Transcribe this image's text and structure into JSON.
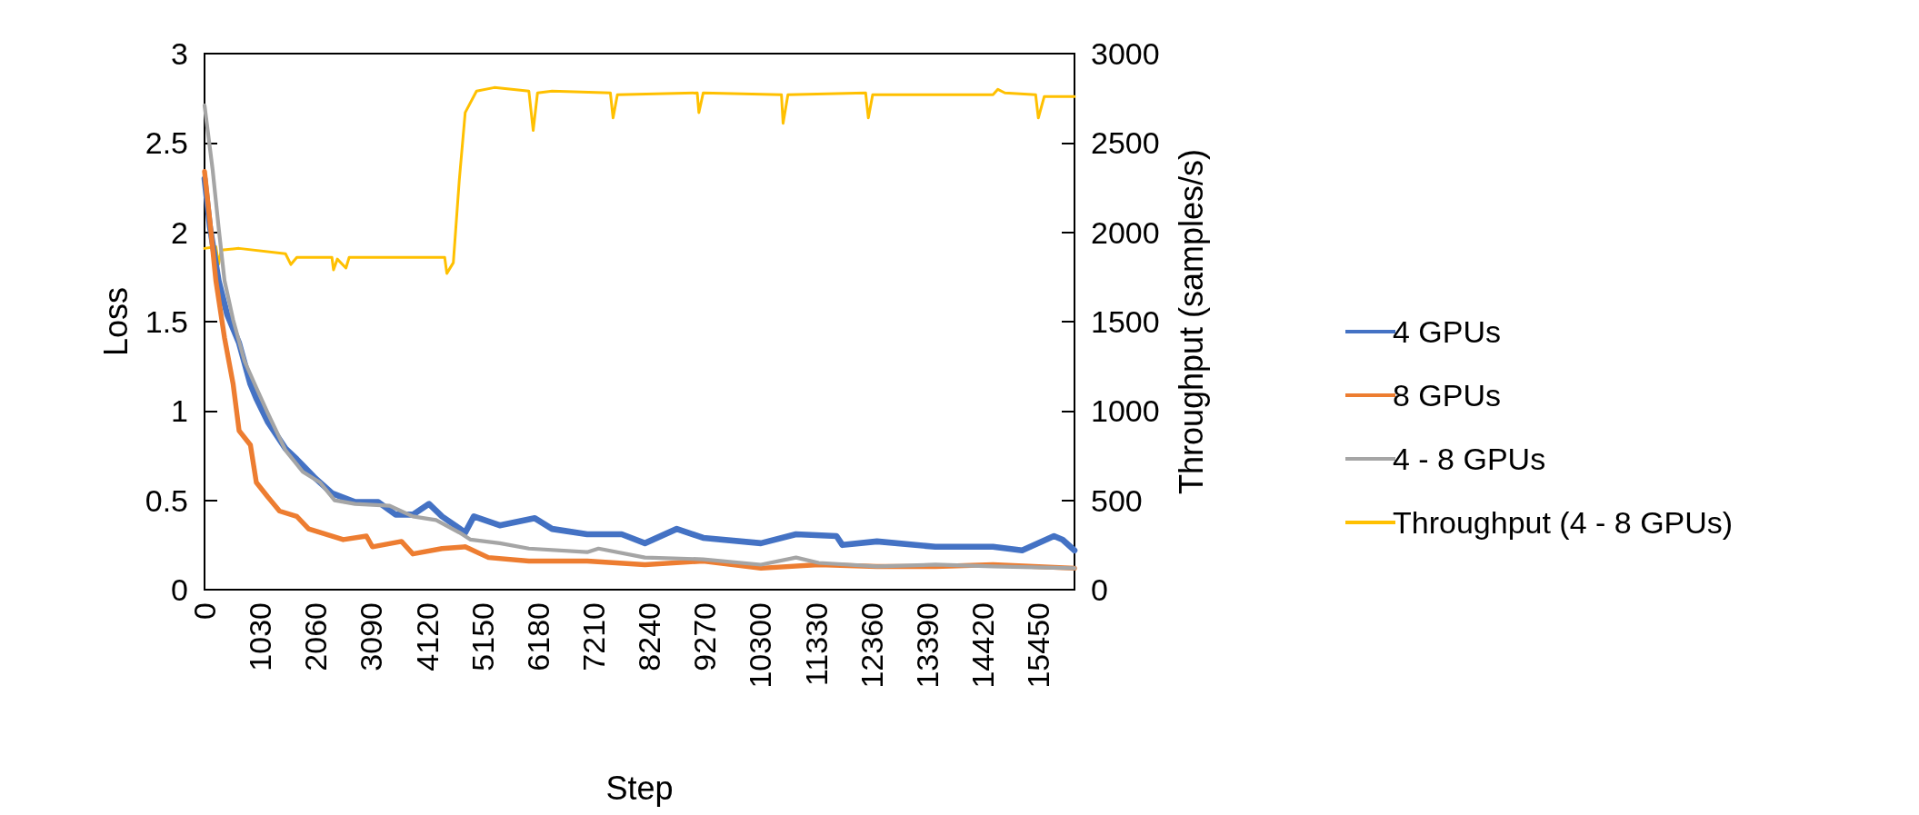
{
  "chart_data": {
    "type": "line",
    "xlabel": "Step",
    "ylabel": "Loss",
    "y2label": "Throughput (samples/s)",
    "xlim": [
      0,
      16120
    ],
    "xticks": [
      0,
      1030,
      2060,
      3090,
      4120,
      5150,
      6180,
      7210,
      8240,
      9270,
      10300,
      11330,
      12360,
      13390,
      14420,
      15450
    ],
    "ylim": [
      0,
      3
    ],
    "yticks": [
      0,
      0.5,
      1,
      1.5,
      2,
      2.5,
      3
    ],
    "y2lim": [
      0,
      3000
    ],
    "y2ticks": [
      0,
      500,
      1000,
      1500,
      2000,
      2500,
      3000
    ],
    "grid": false,
    "legend": "right",
    "marker": "none",
    "line_style": "solid",
    "series": [
      {
        "name": "4 GPUs",
        "color": "#4472c4",
        "x": [
          0,
          100,
          260,
          420,
          640,
          850,
          960,
          1170,
          1500,
          1710,
          2030,
          2360,
          2790,
          3220,
          3540,
          3860,
          4160,
          4400,
          4830,
          4990,
          5470,
          6120,
          6440,
          7090,
          7730,
          8160,
          8750,
          9240,
          10310,
          10960,
          11710,
          11820,
          12460,
          13540,
          14610,
          15150,
          15740,
          15900,
          16120
        ],
        "values": [
          2.3,
          2.03,
          1.73,
          1.54,
          1.38,
          1.15,
          1.07,
          0.94,
          0.79,
          0.73,
          0.63,
          0.54,
          0.49,
          0.49,
          0.42,
          0.42,
          0.48,
          0.41,
          0.32,
          0.41,
          0.36,
          0.4,
          0.34,
          0.31,
          0.31,
          0.26,
          0.34,
          0.29,
          0.26,
          0.31,
          0.3,
          0.25,
          0.27,
          0.24,
          0.24,
          0.22,
          0.3,
          0.28,
          0.22
        ]
      },
      {
        "name": "8 GPUs",
        "color": "#ed7d31",
        "x": [
          0,
          100,
          210,
          370,
          530,
          640,
          850,
          960,
          1170,
          1390,
          1710,
          1930,
          2570,
          3000,
          3110,
          3650,
          3860,
          4400,
          4830,
          5260,
          6010,
          7090,
          8160,
          9240,
          10310,
          11380,
          12460,
          13540,
          14610,
          16120
        ],
        "values": [
          2.34,
          2.06,
          1.73,
          1.41,
          1.15,
          0.89,
          0.81,
          0.6,
          0.52,
          0.44,
          0.41,
          0.34,
          0.28,
          0.3,
          0.24,
          0.27,
          0.2,
          0.23,
          0.24,
          0.18,
          0.16,
          0.16,
          0.14,
          0.16,
          0.12,
          0.14,
          0.13,
          0.13,
          0.14,
          0.12
        ]
      },
      {
        "name": "4 - 8 GPUs",
        "color": "#a5a5a5",
        "x": [
          0,
          150,
          260,
          370,
          530,
          740,
          960,
          1170,
          1500,
          1820,
          2140,
          2410,
          2790,
          3430,
          3860,
          4290,
          4720,
          4930,
          5470,
          6010,
          7090,
          7300,
          8160,
          9240,
          10310,
          10960,
          11380,
          12460,
          13540,
          14610,
          16120
        ],
        "values": [
          2.71,
          2.35,
          2.03,
          1.73,
          1.51,
          1.28,
          1.13,
          0.99,
          0.78,
          0.66,
          0.6,
          0.5,
          0.48,
          0.47,
          0.41,
          0.39,
          0.32,
          0.28,
          0.26,
          0.23,
          0.21,
          0.23,
          0.18,
          0.17,
          0.14,
          0.18,
          0.15,
          0.13,
          0.14,
          0.13,
          0.12
        ]
      },
      {
        "name": "Throughput (4 - 8 GPUs)",
        "color": "#ffc000",
        "axis": "y2",
        "x": [
          0,
          210,
          260,
          310,
          640,
          1500,
          1600,
          1710,
          2360,
          2390,
          2460,
          2620,
          2680,
          4450,
          4490,
          4610,
          4720,
          4830,
          5040,
          5370,
          6010,
          6090,
          6170,
          6440,
          7520,
          7570,
          7650,
          9130,
          9160,
          9240,
          10690,
          10720,
          10810,
          12250,
          12300,
          12380,
          14610,
          14700,
          14830,
          15400,
          15450,
          15560,
          16120
        ],
        "values": [
          1910,
          1920,
          1820,
          1900,
          1910,
          1880,
          1820,
          1860,
          1860,
          1790,
          1850,
          1800,
          1860,
          1860,
          1770,
          1830,
          2290,
          2670,
          2790,
          2810,
          2790,
          2570,
          2780,
          2790,
          2780,
          2640,
          2770,
          2780,
          2670,
          2780,
          2770,
          2610,
          2770,
          2780,
          2640,
          2770,
          2770,
          2800,
          2780,
          2770,
          2640,
          2760,
          2760
        ]
      }
    ]
  }
}
